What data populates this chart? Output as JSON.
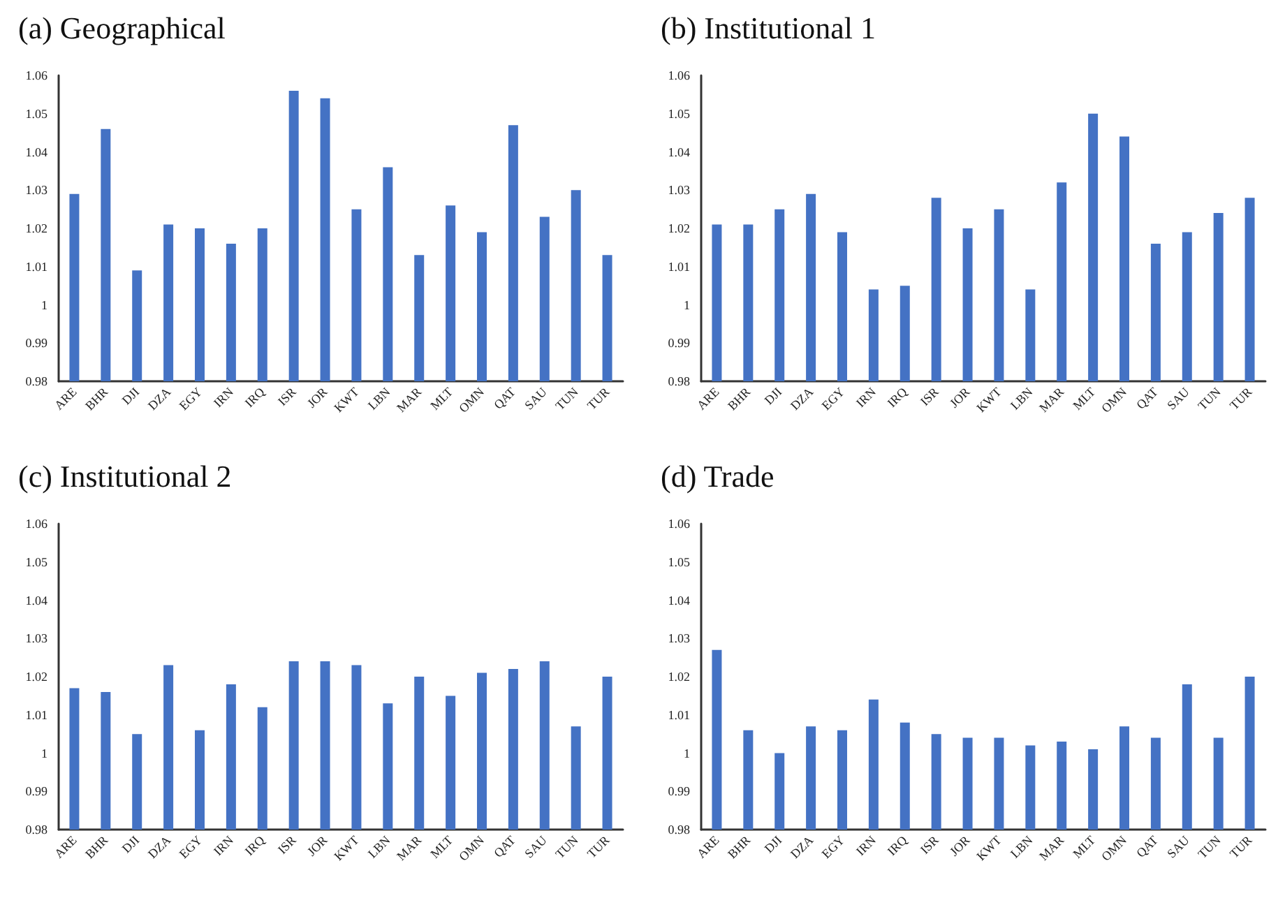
{
  "chart_data": [
    {
      "type": "bar",
      "title": "(a) Geographical",
      "categories": [
        "ARE",
        "BHR",
        "DJI",
        "DZA",
        "EGY",
        "IRN",
        "IRQ",
        "ISR",
        "JOR",
        "KWT",
        "LBN",
        "MAR",
        "MLT",
        "OMN",
        "QAT",
        "SAU",
        "TUN",
        "TUR"
      ],
      "color": "#4472c4",
      "values": [
        1.029,
        1.046,
        1.009,
        1.021,
        1.02,
        1.016,
        1.02,
        1.056,
        1.054,
        1.025,
        1.036,
        1.013,
        1.026,
        1.019,
        1.047,
        1.023,
        1.03,
        1.013
      ],
      "ylim": [
        0.98,
        1.06
      ],
      "yticks": [
        0.98,
        0.99,
        1,
        1.01,
        1.02,
        1.03,
        1.04,
        1.05,
        1.06
      ],
      "grid": false
    },
    {
      "type": "bar",
      "title": "(b) Institutional 1",
      "categories": [
        "ARE",
        "BHR",
        "DJI",
        "DZA",
        "EGY",
        "IRN",
        "IRQ",
        "ISR",
        "JOR",
        "KWT",
        "LBN",
        "MAR",
        "MLT",
        "OMN",
        "QAT",
        "SAU",
        "TUN",
        "TUR"
      ],
      "color": "#4472c4",
      "values": [
        1.021,
        1.021,
        1.025,
        1.029,
        1.019,
        1.004,
        1.005,
        1.028,
        1.02,
        1.025,
        1.004,
        1.032,
        1.05,
        1.044,
        1.016,
        1.019,
        1.024,
        1.028
      ],
      "ylim": [
        0.98,
        1.06
      ],
      "yticks": [
        0.98,
        0.99,
        1,
        1.01,
        1.02,
        1.03,
        1.04,
        1.05,
        1.06
      ],
      "grid": false
    },
    {
      "type": "bar",
      "title": "(c) Institutional 2",
      "categories": [
        "ARE",
        "BHR",
        "DJI",
        "DZA",
        "EGY",
        "IRN",
        "IRQ",
        "ISR",
        "JOR",
        "KWT",
        "LBN",
        "MAR",
        "MLT",
        "OMN",
        "QAT",
        "SAU",
        "TUN",
        "TUR"
      ],
      "color": "#4472c4",
      "values": [
        1.017,
        1.016,
        1.005,
        1.023,
        1.006,
        1.018,
        1.012,
        1.024,
        1.024,
        1.023,
        1.013,
        1.02,
        1.015,
        1.021,
        1.022,
        1.024,
        1.007,
        1.02
      ],
      "ylim": [
        0.98,
        1.06
      ],
      "yticks": [
        0.98,
        0.99,
        1,
        1.01,
        1.02,
        1.03,
        1.04,
        1.05,
        1.06
      ],
      "grid": false
    },
    {
      "type": "bar",
      "title": "(d) Trade",
      "categories": [
        "ARE",
        "BHR",
        "DJI",
        "DZA",
        "EGY",
        "IRN",
        "IRQ",
        "ISR",
        "JOR",
        "KWT",
        "LBN",
        "MAR",
        "MLT",
        "OMN",
        "QAT",
        "SAU",
        "TUN",
        "TUR"
      ],
      "color": "#4472c4",
      "values": [
        1.027,
        1.006,
        1.0,
        1.007,
        1.006,
        1.014,
        1.008,
        1.005,
        1.004,
        1.004,
        1.002,
        1.003,
        1.001,
        1.007,
        1.004,
        1.018,
        1.004,
        1.02
      ],
      "ylim": [
        0.98,
        1.06
      ],
      "yticks": [
        0.98,
        0.99,
        1,
        1.01,
        1.02,
        1.03,
        1.04,
        1.05,
        1.06
      ],
      "grid": false
    }
  ]
}
